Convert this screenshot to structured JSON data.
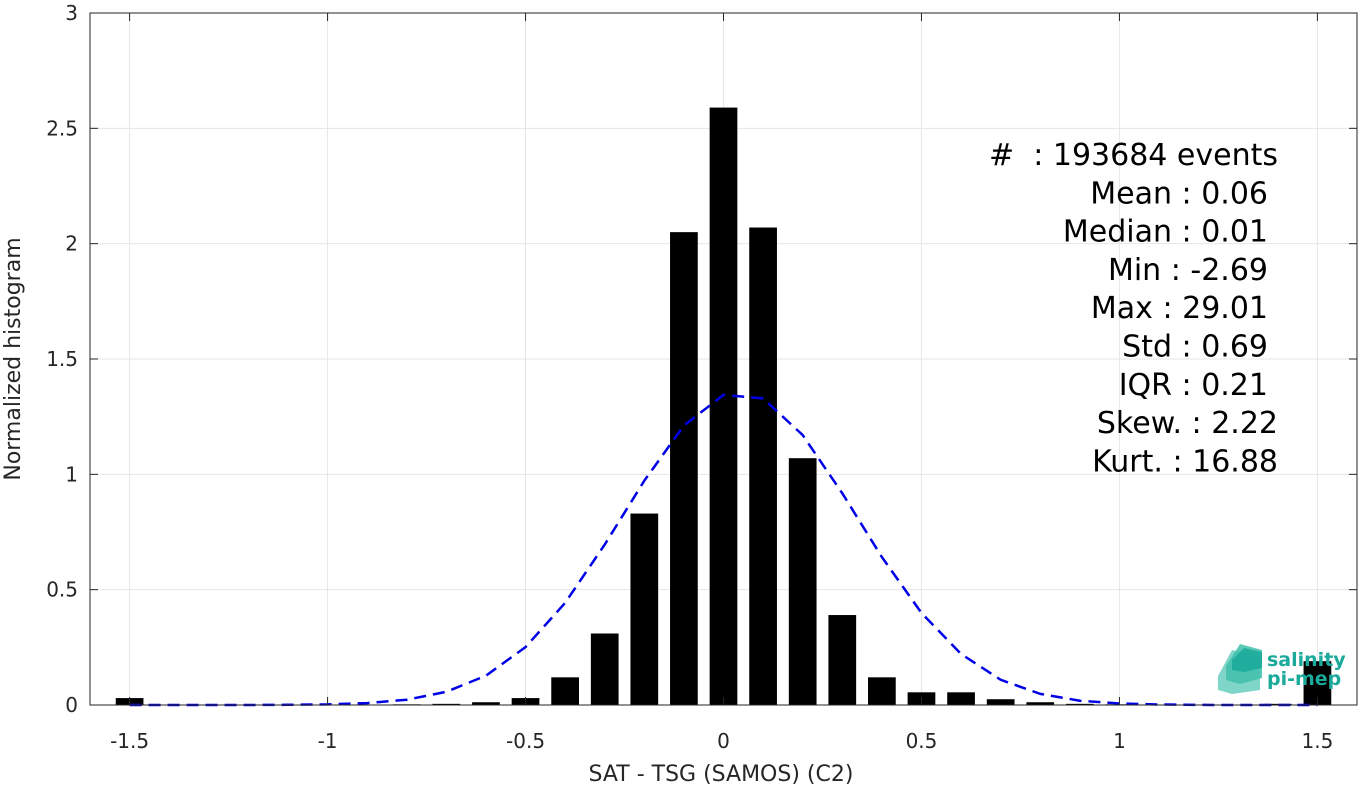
{
  "chart_data": {
    "type": "bar",
    "title": "",
    "xlabel": "SAT - TSG (SAMOS) (C2)",
    "ylabel": "Normalized histogram",
    "xlim": [
      -1.6,
      1.6
    ],
    "ylim": [
      0,
      3
    ],
    "grid": true,
    "bar_width": 0.07,
    "x_ticks": [
      -1.5,
      -1,
      -0.5,
      0,
      0.5,
      1,
      1.5
    ],
    "x_tick_labels": [
      "-1.5",
      "-1",
      "-0.5",
      "0",
      "0.5",
      "1",
      "1.5"
    ],
    "y_ticks": [
      0,
      0.5,
      1,
      1.5,
      2,
      2.5,
      3
    ],
    "y_tick_labels": [
      "0",
      "0.5",
      "1",
      "1.5",
      "2",
      "2.5",
      "3"
    ],
    "bar_color": "#000000",
    "series": [
      {
        "x": [
          -1.5,
          -1.4,
          -1.3,
          -1.2,
          -1.1,
          -1.0,
          -0.9,
          -0.8,
          -0.7,
          -0.6,
          -0.5,
          -0.4,
          -0.3,
          -0.2,
          -0.1,
          0.0,
          0.1,
          0.2,
          0.3,
          0.4,
          0.5,
          0.6,
          0.7,
          0.8,
          0.9,
          1.0,
          1.1,
          1.2,
          1.3,
          1.4,
          1.5
        ],
        "values": [
          0.03,
          0.0,
          0.0,
          0.0,
          0.0,
          0.0,
          0.0,
          0.003,
          0.005,
          0.012,
          0.03,
          0.12,
          0.31,
          0.83,
          2.05,
          2.59,
          2.07,
          1.07,
          0.39,
          0.12,
          0.055,
          0.055,
          0.025,
          0.012,
          0.005,
          0.003,
          0.0,
          0.0,
          0.0,
          0.005,
          0.19
        ]
      }
    ],
    "fit_curve": {
      "style": "dashed",
      "color": "#0000e6",
      "mean": 0.04,
      "std": 0.294,
      "x_range": [
        -1.5,
        1.5
      ]
    },
    "stats": [
      "#  : 193684 events",
      "Mean : 0.06",
      "Median : 0.01",
      "Min : -2.69",
      "Max : 29.01",
      "Std : 0.69",
      "IQR : 0.21",
      "Skew. : 2.22",
      "Kurt. : 16.88"
    ]
  },
  "logo": {
    "line1": "salinity",
    "line2": "pi-mep",
    "color": "#1aa99a"
  }
}
